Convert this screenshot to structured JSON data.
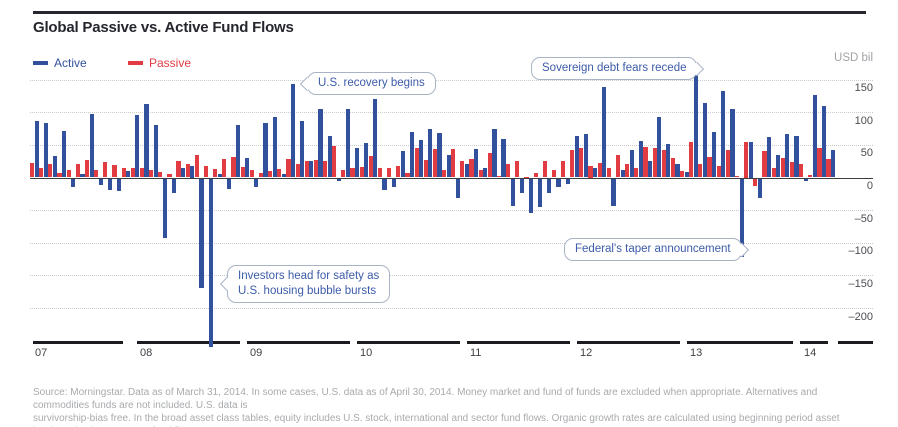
{
  "title": "Global Passive vs. Active Fund Flows",
  "unit_label": "USD bil",
  "legend": {
    "active_label": "Active",
    "passive_label": "Passive",
    "active_color": "#31519d",
    "passive_color": "#e23c43"
  },
  "annotations": [
    {
      "text": "U.S. recovery begins",
      "tail": "left"
    },
    {
      "text": "Sovereign debt fears recede",
      "tail": "right"
    },
    {
      "text": "Federal's taper announcement",
      "tail": "right"
    },
    {
      "line1": "Investors head for safety as",
      "line2": "U.S. housing bubble bursts",
      "tail": "left"
    }
  ],
  "source": {
    "line1": "Source: Morningstar. Data as of March 31, 2014. In some cases, U.S. data as of April 30, 2014. Money market and fund of funds are excluded when appropriate. Alternatives and commodities funds are not included. U.S. data is",
    "line2": "survivorship-bias free. In the broad asset class tables, equity includes U.S. stock, international and sector fund flows. Organic growth rates are calculated using beginning period asset levels and subsequent net fund flows."
  },
  "chart_data": {
    "type": "bar",
    "title": "Global Passive vs. Active Fund Flows",
    "ylabel": "USD bil",
    "ylim": [
      -260,
      175
    ],
    "y_ticks": [
      150,
      100,
      50,
      0,
      -50,
      -100,
      -150,
      -200
    ],
    "y_tick_labels": [
      "150",
      "100",
      "50",
      "0",
      "–50",
      "–100",
      "–150",
      "–200"
    ],
    "x_years": [
      "07",
      "08",
      "09",
      "10",
      "11",
      "12",
      "13",
      "14"
    ],
    "grid": "dotted-horizontal",
    "legend_position": "top-left",
    "bar_order_per_month": [
      "passive",
      "active"
    ],
    "series_names": [
      "Passive",
      "Active"
    ],
    "months": [
      {
        "m": "2007-01",
        "passive": 22,
        "active": 87
      },
      {
        "m": "2007-02",
        "passive": 14,
        "active": 84
      },
      {
        "m": "2007-03",
        "passive": 20,
        "active": 33
      },
      {
        "m": "2007-04",
        "passive": 7,
        "active": 71
      },
      {
        "m": "2007-05",
        "passive": 11,
        "active": -14
      },
      {
        "m": "2007-06",
        "passive": 20,
        "active": 6
      },
      {
        "m": "2007-07",
        "passive": 27,
        "active": 98
      },
      {
        "m": "2007-08",
        "passive": 12,
        "active": -12
      },
      {
        "m": "2007-09",
        "passive": 24,
        "active": -19
      },
      {
        "m": "2007-10",
        "passive": 19,
        "active": -21
      },
      {
        "m": "2007-11",
        "passive": 15,
        "active": 10
      },
      {
        "m": "2007-12",
        "passive": 14,
        "active": 96
      },
      {
        "m": "2008-01",
        "passive": 15,
        "active": 113
      },
      {
        "m": "2008-02",
        "passive": 11,
        "active": 81
      },
      {
        "m": "2008-03",
        "passive": 8,
        "active": -93
      },
      {
        "m": "2008-04",
        "passive": 5,
        "active": -24
      },
      {
        "m": "2008-05",
        "passive": 26,
        "active": 15
      },
      {
        "m": "2008-06",
        "passive": 21,
        "active": 18
      },
      {
        "m": "2008-07",
        "passive": 34,
        "active": -170
      },
      {
        "m": "2008-08",
        "passive": 17,
        "active": -260
      },
      {
        "m": "2008-09",
        "passive": 13,
        "active": 6
      },
      {
        "m": "2008-10",
        "passive": 28,
        "active": -18
      },
      {
        "m": "2008-11",
        "passive": 32,
        "active": 80
      },
      {
        "m": "2008-12",
        "passive": 16,
        "active": 30
      },
      {
        "m": "2009-01",
        "passive": 11,
        "active": -15
      },
      {
        "m": "2009-02",
        "passive": 7,
        "active": 83
      },
      {
        "m": "2009-03",
        "passive": 10,
        "active": 93
      },
      {
        "m": "2009-04",
        "passive": 13,
        "active": 6
      },
      {
        "m": "2009-05",
        "passive": 28,
        "active": 143
      },
      {
        "m": "2009-06",
        "passive": 21,
        "active": 86
      },
      {
        "m": "2009-07",
        "passive": 25,
        "active": 26
      },
      {
        "m": "2009-08",
        "passive": 27,
        "active": 105
      },
      {
        "m": "2009-09",
        "passive": 26,
        "active": 63
      },
      {
        "m": "2009-10",
        "passive": 49,
        "active": -5
      },
      {
        "m": "2009-11",
        "passive": 11,
        "active": 105
      },
      {
        "m": "2009-12",
        "passive": 15,
        "active": 45
      },
      {
        "m": "2010-01",
        "passive": 16,
        "active": 53
      },
      {
        "m": "2010-02",
        "passive": 33,
        "active": 121
      },
      {
        "m": "2010-03",
        "passive": 15,
        "active": -19
      },
      {
        "m": "2010-04",
        "passive": 15,
        "active": -15
      },
      {
        "m": "2010-05",
        "passive": 17,
        "active": 40
      },
      {
        "m": "2010-06",
        "passive": 7,
        "active": 70
      },
      {
        "m": "2010-07",
        "passive": 45,
        "active": 58
      },
      {
        "m": "2010-08",
        "passive": 27,
        "active": 75
      },
      {
        "m": "2010-09",
        "passive": 44,
        "active": 68
      },
      {
        "m": "2010-10",
        "passive": 12,
        "active": 34
      },
      {
        "m": "2010-11",
        "passive": 43,
        "active": -32
      },
      {
        "m": "2010-12",
        "passive": 25,
        "active": 21
      },
      {
        "m": "2011-01",
        "passive": 29,
        "active": 44
      },
      {
        "m": "2011-02",
        "passive": 12,
        "active": 15
      },
      {
        "m": "2011-03",
        "passive": 37,
        "active": 74
      },
      {
        "m": "2011-04",
        "passive": 3,
        "active": 59
      },
      {
        "m": "2011-05",
        "passive": 20,
        "active": -43
      },
      {
        "m": "2011-06",
        "passive": 25,
        "active": -23
      },
      {
        "m": "2011-07",
        "passive": 1,
        "active": -54
      },
      {
        "m": "2011-08",
        "passive": 7,
        "active": -45
      },
      {
        "m": "2011-09",
        "passive": 25,
        "active": -23
      },
      {
        "m": "2011-10",
        "passive": 11,
        "active": -15
      },
      {
        "m": "2011-11",
        "passive": 25,
        "active": -10
      },
      {
        "m": "2011-12",
        "passive": 42,
        "active": 64
      },
      {
        "m": "2012-01",
        "passive": 45,
        "active": 66
      },
      {
        "m": "2012-02",
        "passive": 18,
        "active": 15
      },
      {
        "m": "2012-03",
        "passive": 22,
        "active": 138
      },
      {
        "m": "2012-04",
        "passive": 15,
        "active": -43
      },
      {
        "m": "2012-05",
        "passive": 35,
        "active": 11
      },
      {
        "m": "2012-06",
        "passive": 20,
        "active": 42
      },
      {
        "m": "2012-07",
        "passive": 15,
        "active": 56
      },
      {
        "m": "2012-08",
        "passive": 47,
        "active": 25
      },
      {
        "m": "2012-09",
        "passive": 45,
        "active": 92
      },
      {
        "m": "2012-10",
        "passive": 42,
        "active": 51
      },
      {
        "m": "2012-11",
        "passive": 30,
        "active": 20
      },
      {
        "m": "2012-12",
        "passive": 10,
        "active": 8
      },
      {
        "m": "2013-01",
        "passive": 55,
        "active": 172
      },
      {
        "m": "2013-02",
        "passive": 21,
        "active": 114
      },
      {
        "m": "2013-03",
        "passive": 31,
        "active": 70
      },
      {
        "m": "2013-04",
        "passive": 17,
        "active": 132
      },
      {
        "m": "2013-05",
        "passive": 42,
        "active": 105
      },
      {
        "m": "2013-06",
        "passive": 2,
        "active": -122
      },
      {
        "m": "2013-07",
        "passive": 54,
        "active": 54
      },
      {
        "m": "2013-08",
        "passive": -13,
        "active": -31
      },
      {
        "m": "2013-09",
        "passive": 40,
        "active": 62
      },
      {
        "m": "2013-10",
        "passive": 15,
        "active": 35
      },
      {
        "m": "2013-11",
        "passive": 30,
        "active": 66
      },
      {
        "m": "2013-12",
        "passive": 23,
        "active": 64
      },
      {
        "m": "2014-01",
        "passive": 21,
        "active": -6
      },
      {
        "m": "2014-02",
        "passive": 4,
        "active": 127
      },
      {
        "m": "2014-03",
        "passive": 45,
        "active": 110
      },
      {
        "m": "2014-04",
        "passive": 28,
        "active": 42
      }
    ],
    "annotated_events": [
      {
        "label": "Investors head for safety as U.S. housing bubble bursts",
        "month": "2008-08",
        "active_value": -260
      },
      {
        "label": "U.S. recovery begins",
        "month": "2009-05",
        "active_value": 143
      },
      {
        "label": "Sovereign debt fears recede",
        "month": "2013-01",
        "active_value": 172
      },
      {
        "label": "Federal's taper announcement",
        "month": "2013-06",
        "active_value": -122
      }
    ]
  }
}
